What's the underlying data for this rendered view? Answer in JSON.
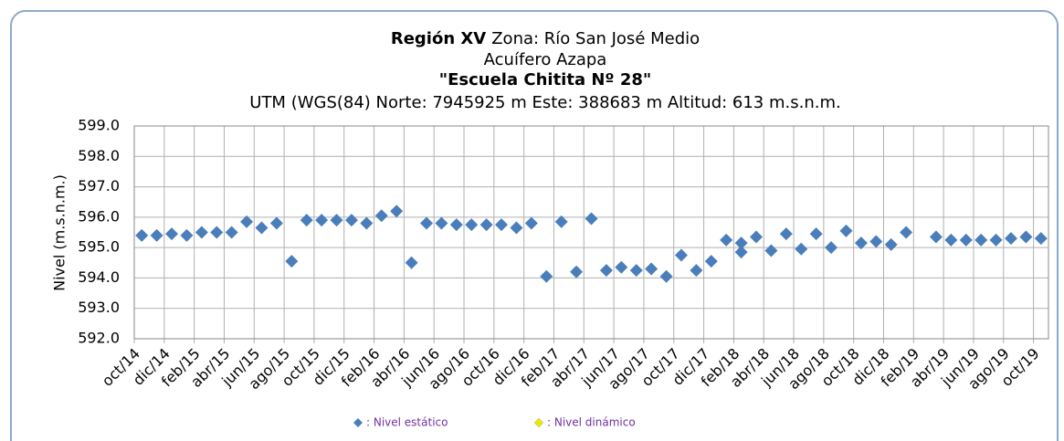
{
  "chart_data": {
    "type": "scatter",
    "title_bold": "Región XV",
    "title": "Zona: Río San José Medio",
    "subtitle": "Acuífero Azapa",
    "station": "\"Escuela Chitita Nº 28\"",
    "location": "UTM (WGS(84) Norte: 7945925 m Este: 388683 m  Altitud: 613 m.s.n.m.",
    "y_label": "Nivel (m.s.n.m.)",
    "xlim": [
      "2014-10",
      "2019-11"
    ],
    "xticks": [
      {
        "value": "2014-10",
        "label": "oct/14"
      },
      {
        "value": "2014-12",
        "label": "dic/14"
      },
      {
        "value": "2015-02",
        "label": "feb/15"
      },
      {
        "value": "2015-04",
        "label": "abr/15"
      },
      {
        "value": "2015-06",
        "label": "jun/15"
      },
      {
        "value": "2015-08",
        "label": "ago/15"
      },
      {
        "value": "2015-10",
        "label": "oct/15"
      },
      {
        "value": "2015-12",
        "label": "dic/15"
      },
      {
        "value": "2016-02",
        "label": "feb/16"
      },
      {
        "value": "2016-04",
        "label": "abr/16"
      },
      {
        "value": "2016-06",
        "label": "jun/16"
      },
      {
        "value": "2016-08",
        "label": "ago/16"
      },
      {
        "value": "2016-10",
        "label": "oct/16"
      },
      {
        "value": "2016-12",
        "label": "dic/16"
      },
      {
        "value": "2017-02",
        "label": "feb/17"
      },
      {
        "value": "2017-04",
        "label": "abr/17"
      },
      {
        "value": "2017-06",
        "label": "jun/17"
      },
      {
        "value": "2017-08",
        "label": "ago/17"
      },
      {
        "value": "2017-10",
        "label": "oct/17"
      },
      {
        "value": "2017-12",
        "label": "dic/17"
      },
      {
        "value": "2018-02",
        "label": "feb/18"
      },
      {
        "value": "2018-04",
        "label": "abr/18"
      },
      {
        "value": "2018-06",
        "label": "jun/18"
      },
      {
        "value": "2018-08",
        "label": "ago/18"
      },
      {
        "value": "2018-10",
        "label": "oct/18"
      },
      {
        "value": "2018-12",
        "label": "dic/18"
      },
      {
        "value": "2019-02",
        "label": "feb/19"
      },
      {
        "value": "2019-04",
        "label": "abr/19"
      },
      {
        "value": "2019-06",
        "label": "jun/19"
      },
      {
        "value": "2019-08",
        "label": "ago/19"
      },
      {
        "value": "2019-10",
        "label": "oct/19"
      }
    ],
    "ylim": [
      592,
      599
    ],
    "yticks": [
      {
        "value": 592,
        "label": "592.0"
      },
      {
        "value": 593,
        "label": "593.0"
      },
      {
        "value": 594,
        "label": "594.0"
      },
      {
        "value": 595,
        "label": "595.0"
      },
      {
        "value": 596,
        "label": "596.0"
      },
      {
        "value": 597,
        "label": "597.0"
      },
      {
        "value": 598,
        "label": "598.0"
      },
      {
        "value": 599,
        "label": "599.0"
      }
    ],
    "grid": true,
    "series": [
      {
        "name": ": Nivel estático",
        "color": "#4a7ebb",
        "x": [
          "2014-10",
          "2014-11",
          "2014-12",
          "2015-01",
          "2015-02",
          "2015-03",
          "2015-04",
          "2015-05",
          "2015-06",
          "2015-07",
          "2015-08",
          "2015-09",
          "2015-10",
          "2015-11",
          "2015-12",
          "2016-01",
          "2016-02",
          "2016-03",
          "2016-04",
          "2016-05",
          "2016-06",
          "2016-07",
          "2016-08",
          "2016-09",
          "2016-10",
          "2016-11",
          "2016-12",
          "2017-01",
          "2017-02",
          "2017-03",
          "2017-04",
          "2017-05",
          "2017-06",
          "2017-07",
          "2017-08",
          "2017-09",
          "2017-10",
          "2017-11",
          "2017-12",
          "2018-01",
          "2018-02",
          "2018-02",
          "2018-03",
          "2018-04",
          "2018-05",
          "2018-06",
          "2018-07",
          "2018-08",
          "2018-09",
          "2018-10",
          "2018-11",
          "2018-12",
          "2019-01",
          "2019-03",
          "2019-04",
          "2019-05",
          "2019-06",
          "2019-07",
          "2019-08",
          "2019-09",
          "2019-10"
        ],
        "values": [
          595.4,
          595.4,
          595.45,
          595.4,
          595.5,
          595.5,
          595.5,
          595.85,
          595.65,
          595.8,
          594.55,
          595.9,
          595.9,
          595.9,
          595.9,
          595.8,
          596.05,
          596.2,
          594.5,
          595.8,
          595.8,
          595.75,
          595.75,
          595.75,
          595.75,
          595.65,
          595.8,
          594.05,
          595.85,
          594.2,
          595.95,
          594.25,
          594.35,
          594.25,
          594.3,
          594.05,
          594.75,
          594.25,
          594.55,
          595.25,
          594.85,
          595.15,
          595.35,
          594.9,
          595.45,
          594.95,
          595.45,
          595.0,
          595.55,
          595.15,
          595.2,
          595.1,
          595.5,
          595.35,
          595.25,
          595.25,
          595.25,
          595.25,
          595.3,
          595.35,
          595.3
        ]
      },
      {
        "name": ": Nivel dinámico",
        "color": "#e8e800",
        "x": [],
        "values": []
      }
    ]
  }
}
